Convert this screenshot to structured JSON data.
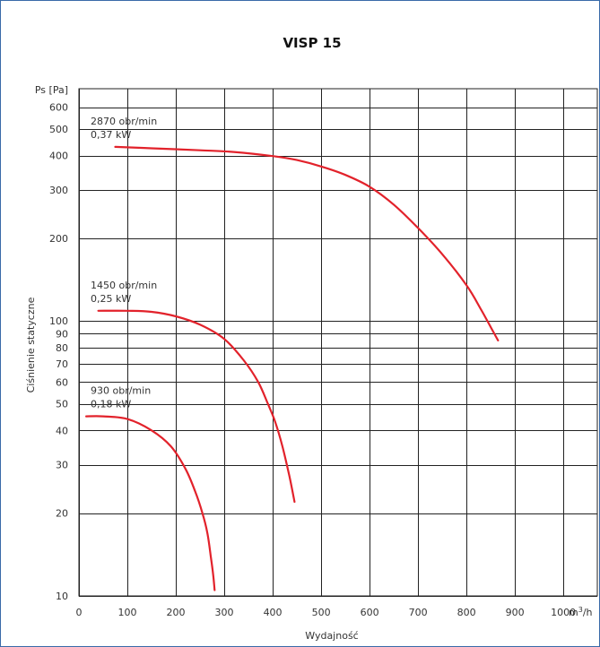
{
  "chart_data": {
    "type": "line",
    "title": "VISP 15",
    "xlabel": "Wydajność",
    "ylabel": "Ciśnienie statyczne",
    "y_unit_label": "Ps [Pa]",
    "x_unit_label": "m3/h",
    "x_scale": "linear",
    "y_scale": "log",
    "xlim": [
      0,
      1070
    ],
    "ylim": [
      10,
      700
    ],
    "grid": true,
    "x_ticks": [
      0,
      100,
      200,
      300,
      400,
      500,
      600,
      700,
      800,
      900,
      1000
    ],
    "x_tick_labels": [
      "0",
      "100",
      "200",
      "300",
      "400",
      "500",
      "600",
      "700",
      "800",
      "900",
      "1000"
    ],
    "y_ticks": [
      10,
      20,
      30,
      40,
      50,
      60,
      70,
      80,
      90,
      100,
      200,
      300,
      400,
      500,
      600
    ],
    "y_tick_labels": [
      "10",
      "20",
      "30",
      "40",
      "50",
      "60",
      "70",
      "80",
      "90",
      "100",
      "200",
      "300",
      "400",
      "500",
      "600"
    ],
    "line_color": "#e2222b",
    "grid_color": "#222222",
    "series": [
      {
        "annotation": [
          "2870 obr/min",
          "0,37 kW"
        ],
        "points": [
          [
            75,
            430
          ],
          [
            150,
            425
          ],
          [
            250,
            418
          ],
          [
            320,
            412
          ],
          [
            400,
            398
          ],
          [
            450,
            385
          ],
          [
            500,
            365
          ],
          [
            550,
            340
          ],
          [
            600,
            308
          ],
          [
            650,
            265
          ],
          [
            700,
            218
          ],
          [
            750,
            175
          ],
          [
            800,
            135
          ],
          [
            830,
            110
          ],
          [
            850,
            95
          ],
          [
            865,
            85
          ]
        ]
      },
      {
        "annotation": [
          "1450 obr/min",
          "0,25 kW"
        ],
        "points": [
          [
            40,
            109
          ],
          [
            100,
            109
          ],
          [
            150,
            108
          ],
          [
            200,
            104
          ],
          [
            250,
            97
          ],
          [
            300,
            86
          ],
          [
            340,
            72
          ],
          [
            370,
            60
          ],
          [
            390,
            50
          ],
          [
            405,
            43
          ],
          [
            420,
            35
          ],
          [
            435,
            27
          ],
          [
            445,
            22
          ]
        ]
      },
      {
        "annotation": [
          "930 obr/min",
          "0,18 kW"
        ],
        "points": [
          [
            15,
            45
          ],
          [
            50,
            45
          ],
          [
            100,
            44
          ],
          [
            150,
            40
          ],
          [
            190,
            35
          ],
          [
            220,
            29
          ],
          [
            240,
            24
          ],
          [
            255,
            20
          ],
          [
            265,
            17
          ],
          [
            272,
            14
          ],
          [
            277,
            12
          ],
          [
            280,
            10.5
          ]
        ]
      }
    ]
  }
}
